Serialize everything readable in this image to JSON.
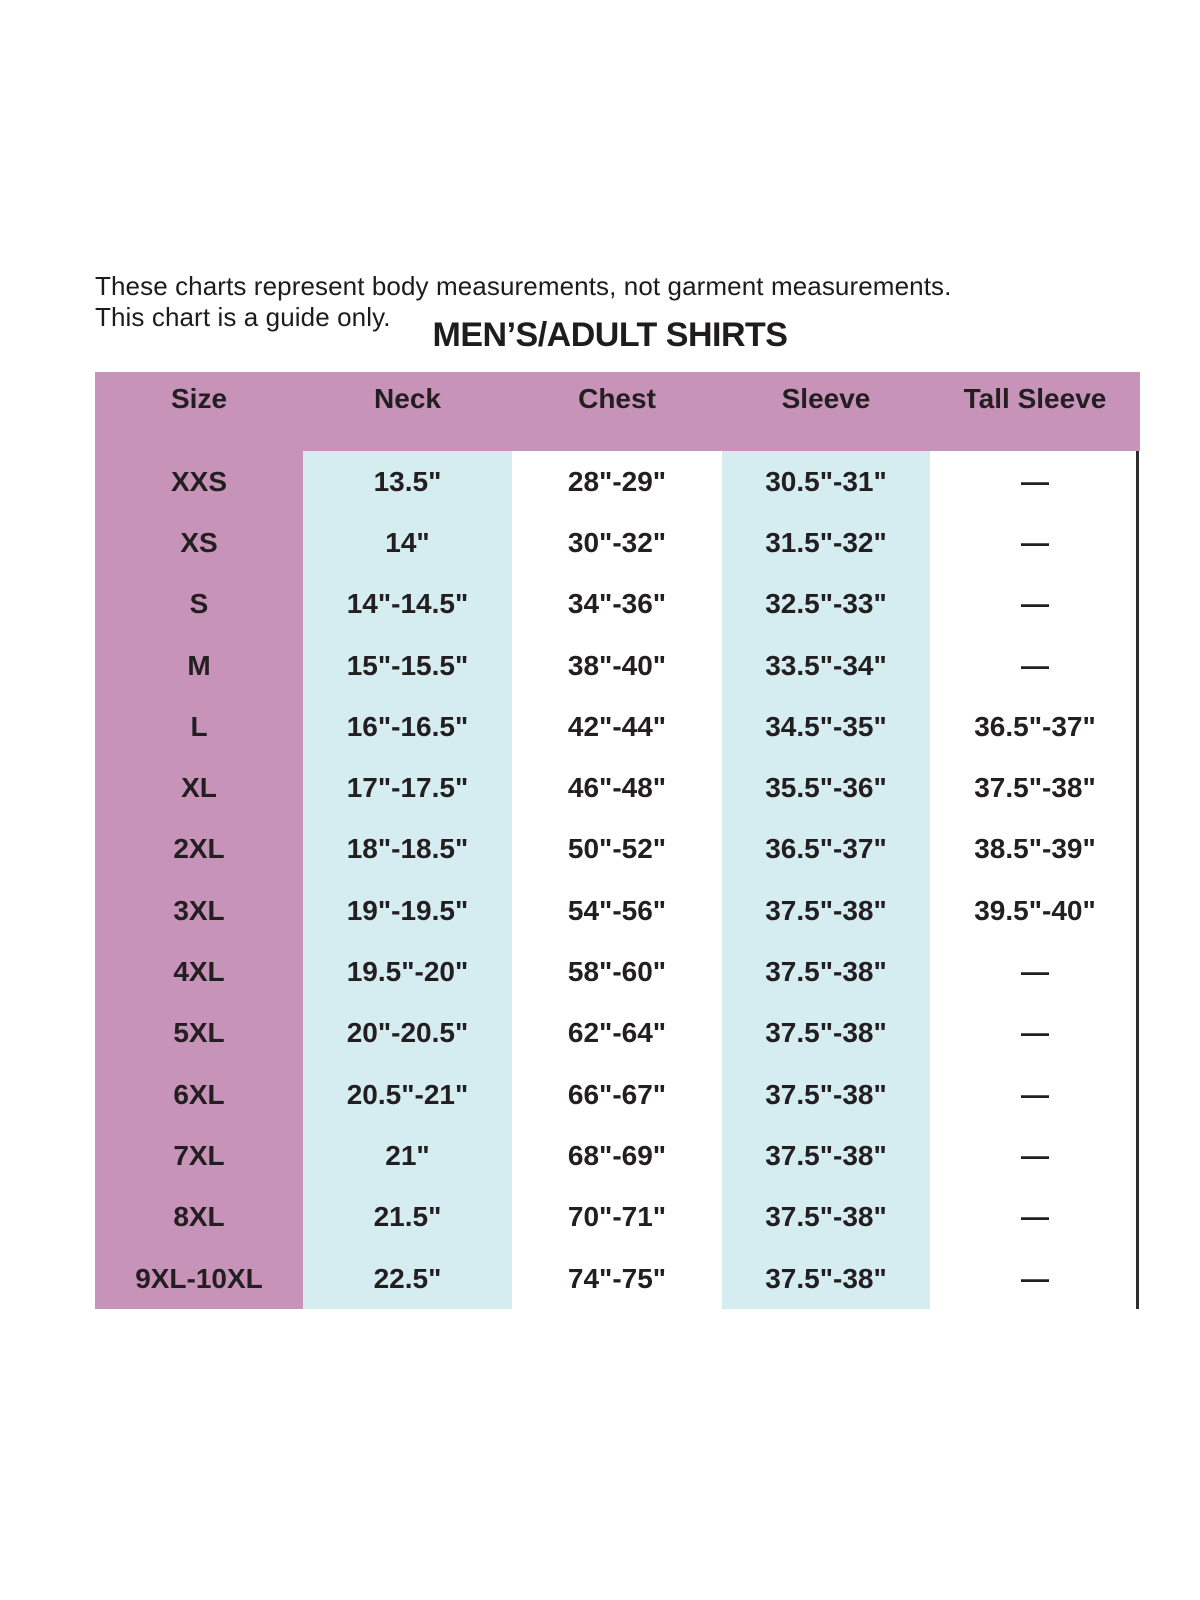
{
  "note": {
    "line1": "These charts represent body measurements, not garment measurements.",
    "line2": "This chart is a guide only."
  },
  "chart_data": {
    "type": "table",
    "title": "MEN’S/ADULT SHIRTS",
    "columns": [
      "Size",
      "Neck",
      "Chest",
      "Sleeve",
      "Tall Sleeve"
    ],
    "rows": [
      [
        "XXS",
        "13.5\"",
        "28\"-29\"",
        "30.5\"-31\"",
        "—"
      ],
      [
        "XS",
        "14\"",
        "30\"-32\"",
        "31.5\"-32\"",
        "—"
      ],
      [
        "S",
        "14\"-14.5\"",
        "34\"-36\"",
        "32.5\"-33\"",
        "—"
      ],
      [
        "M",
        "15\"-15.5\"",
        "38\"-40\"",
        "33.5\"-34\"",
        "—"
      ],
      [
        "L",
        "16\"-16.5\"",
        "42\"-44\"",
        "34.5\"-35\"",
        "36.5\"-37\""
      ],
      [
        "XL",
        "17\"-17.5\"",
        "46\"-48\"",
        "35.5\"-36\"",
        "37.5\"-38\""
      ],
      [
        "2XL",
        "18\"-18.5\"",
        "50\"-52\"",
        "36.5\"-37\"",
        "38.5\"-39\""
      ],
      [
        "3XL",
        "19\"-19.5\"",
        "54\"-56\"",
        "37.5\"-38\"",
        "39.5\"-40\""
      ],
      [
        "4XL",
        "19.5\"-20\"",
        "58\"-60\"",
        "37.5\"-38\"",
        "—"
      ],
      [
        "5XL",
        "20\"-20.5\"",
        "62\"-64\"",
        "37.5\"-38\"",
        "—"
      ],
      [
        "6XL",
        "20.5\"-21\"",
        "66\"-67\"",
        "37.5\"-38\"",
        "—"
      ],
      [
        "7XL",
        "21\"",
        "68\"-69\"",
        "37.5\"-38\"",
        "—"
      ],
      [
        "8XL",
        "21.5\"",
        "70\"-71\"",
        "37.5\"-38\"",
        "—"
      ],
      [
        "9XL-10XL",
        "22.5\"",
        "74\"-75\"",
        "37.5\"-38\"",
        "—"
      ]
    ],
    "empty_value_symbol": "—"
  },
  "colors": {
    "header_and_size_column_pink": "#c893b9",
    "neck_and_sleeve_column_blue": "#d5ecf1",
    "text_dark": "#231f20",
    "right_border_line": "#2e2b2c",
    "page_background": "#ffffff"
  }
}
